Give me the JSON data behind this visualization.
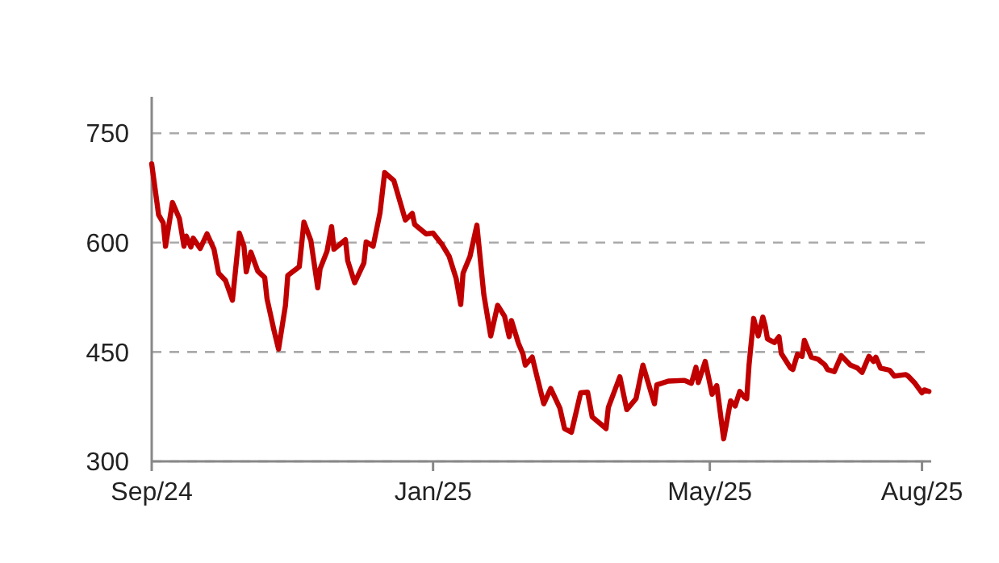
{
  "chart_data": {
    "type": "line",
    "xlim": [
      "2024-09-01",
      "2025-08-05"
    ],
    "ylim": [
      300,
      800
    ],
    "xticks": [
      {
        "value": "2024-09-01",
        "label": "Sep/24"
      },
      {
        "value": "2025-01-01",
        "label": "Jan/25"
      },
      {
        "value": "2025-05-01",
        "label": "May/25"
      },
      {
        "value": "2025-08-01",
        "label": "Aug/25"
      }
    ],
    "yticks": [
      300,
      450,
      600,
      750
    ],
    "grid": "y",
    "line_style": "solid",
    "series": [
      {
        "color": "#c00000",
        "x": [
          "2024-09-01",
          "2024-09-04",
          "2024-09-06",
          "2024-09-07",
          "2024-09-10",
          "2024-09-13",
          "2024-09-15",
          "2024-09-16",
          "2024-09-18",
          "2024-09-19",
          "2024-09-22",
          "2024-09-25",
          "2024-09-28",
          "2024-09-30",
          "2024-10-03",
          "2024-10-06",
          "2024-10-09",
          "2024-10-11",
          "2024-10-12",
          "2024-10-14",
          "2024-10-17",
          "2024-10-20",
          "2024-10-21",
          "2024-10-24",
          "2024-10-26",
          "2024-10-29",
          "2024-10-30",
          "2024-11-04",
          "2024-11-06",
          "2024-11-09",
          "2024-11-12",
          "2024-11-13",
          "2024-11-16",
          "2024-11-18",
          "2024-11-19",
          "2024-11-24",
          "2024-11-25",
          "2024-11-28",
          "2024-12-02",
          "2024-12-03",
          "2024-12-06",
          "2024-12-09",
          "2024-12-11",
          "2024-12-15",
          "2024-12-20",
          "2024-12-23",
          "2024-12-24",
          "2024-12-29",
          "2025-01-01",
          "2025-01-05",
          "2025-01-08",
          "2025-01-11",
          "2025-01-13",
          "2025-01-14",
          "2025-01-17",
          "2025-01-20",
          "2025-01-23",
          "2025-01-26",
          "2025-01-29",
          "2025-02-01",
          "2025-02-03",
          "2025-02-04",
          "2025-02-07",
          "2025-02-09",
          "2025-02-10",
          "2025-02-13",
          "2025-02-15",
          "2025-02-18",
          "2025-02-21",
          "2025-02-25",
          "2025-02-27",
          "2025-03-02",
          "2025-03-06",
          "2025-03-09",
          "2025-03-11",
          "2025-03-17",
          "2025-03-18",
          "2025-03-23",
          "2025-03-26",
          "2025-03-30",
          "2025-04-02",
          "2025-04-07",
          "2025-04-08",
          "2025-04-13",
          "2025-04-20",
          "2025-04-23",
          "2025-04-25",
          "2025-04-26",
          "2025-04-29",
          "2025-05-02",
          "2025-05-04",
          "2025-05-05",
          "2025-05-07",
          "2025-05-10",
          "2025-05-12",
          "2025-05-14",
          "2025-05-16",
          "2025-05-17",
          "2025-05-18",
          "2025-05-20",
          "2025-05-22",
          "2025-05-24",
          "2025-05-25",
          "2025-05-26",
          "2025-05-29",
          "2025-05-31",
          "2025-06-01",
          "2025-06-05",
          "2025-06-06",
          "2025-06-08",
          "2025-06-10",
          "2025-06-11",
          "2025-06-14",
          "2025-06-17",
          "2025-06-20",
          "2025-06-21",
          "2025-06-24",
          "2025-06-27",
          "2025-07-01",
          "2025-07-04",
          "2025-07-06",
          "2025-07-09",
          "2025-07-11",
          "2025-07-12",
          "2025-07-14",
          "2025-07-18",
          "2025-07-20",
          "2025-07-25",
          "2025-07-26",
          "2025-07-29",
          "2025-08-01",
          "2025-08-02",
          "2025-08-04"
        ],
        "values": [
          708,
          638,
          627,
          595,
          655,
          633,
          595,
          609,
          594,
          606,
          592,
          612,
          591,
          558,
          548,
          521,
          613,
          595,
          560,
          587,
          561,
          552,
          523,
          480,
          454,
          514,
          555,
          567,
          628,
          603,
          538,
          564,
          588,
          622,
          591,
          604,
          575,
          545,
          572,
          601,
          595,
          641,
          696,
          685,
          631,
          640,
          625,
          612,
          613,
          597,
          581,
          551,
          515,
          558,
          581,
          624,
          529,
          472,
          514,
          499,
          471,
          493,
          462,
          447,
          432,
          443,
          417,
          379,
          400,
          373,
          345,
          340,
          394,
          395,
          361,
          345,
          374,
          416,
          371,
          386,
          432,
          379,
          405,
          410,
          411,
          407,
          429,
          408,
          437,
          392,
          404,
          380,
          331,
          383,
          376,
          396,
          388,
          386,
          432,
          496,
          472,
          498,
          486,
          468,
          463,
          471,
          448,
          428,
          426,
          447,
          444,
          466,
          443,
          440,
          432,
          426,
          423,
          445,
          432,
          428,
          422,
          444,
          437,
          443,
          428,
          425,
          417,
          419,
          417,
          407,
          394,
          398,
          396
        ]
      }
    ]
  }
}
